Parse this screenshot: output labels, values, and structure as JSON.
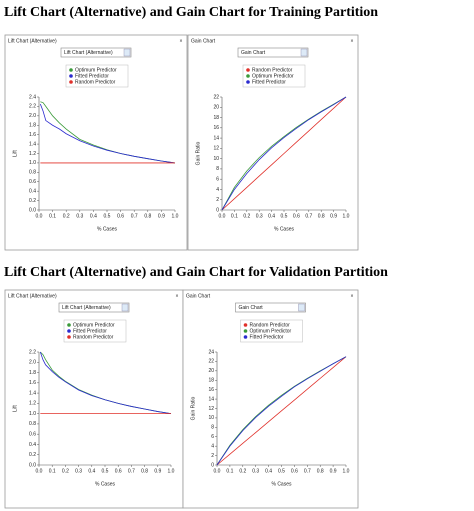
{
  "headings": [
    "Lift Chart (Alternative) and Gain Chart for Training Partition",
    "Lift Chart (Alternative) and Gain Chart for Validation Partition"
  ],
  "chart_data": [
    {
      "type": "line",
      "panel_title": "Lift Chart (Alternative)",
      "dropdown": "Lift Chart (Alternative)",
      "close": "×",
      "x_label": "% Cases",
      "y_label": "Lift",
      "x": [
        0.01,
        0.03,
        0.05,
        0.1,
        0.15,
        0.2,
        0.3,
        0.4,
        0.5,
        0.6,
        0.7,
        0.8,
        0.9,
        1.0
      ],
      "series": [
        {
          "name": "Optimum Predictor",
          "color": "#3a9a3a",
          "values": [
            2.3,
            2.28,
            2.2,
            2.0,
            1.85,
            1.72,
            1.5,
            1.38,
            1.28,
            1.2,
            1.14,
            1.09,
            1.04,
            1.0
          ]
        },
        {
          "name": "Fitted Predictor",
          "color": "#2b2bcf",
          "values": [
            2.25,
            2.1,
            1.9,
            1.8,
            1.72,
            1.62,
            1.47,
            1.36,
            1.27,
            1.2,
            1.14,
            1.09,
            1.04,
            1.0
          ]
        },
        {
          "name": "Random Predictor",
          "color": "#e0302a",
          "values": [
            1.0,
            1.0,
            1.0,
            1.0,
            1.0,
            1.0,
            1.0,
            1.0,
            1.0,
            1.0,
            1.0,
            1.0,
            1.0,
            1.0
          ]
        }
      ],
      "xlim": [
        0,
        1
      ],
      "ylim": [
        0,
        2.4
      ],
      "xticks": [
        {
          "value": 0,
          "label": "0.0"
        },
        {
          "value": 0.1,
          "label": "0.1"
        },
        {
          "value": 0.2,
          "label": "0.2"
        },
        {
          "value": 0.3,
          "label": "0.3"
        },
        {
          "value": 0.4,
          "label": "0.4"
        },
        {
          "value": 0.5,
          "label": "0.5"
        },
        {
          "value": 0.6,
          "label": "0.6"
        },
        {
          "value": 0.7,
          "label": "0.7"
        },
        {
          "value": 0.8,
          "label": "0.8"
        },
        {
          "value": 0.9,
          "label": "0.9"
        },
        {
          "value": 1,
          "label": "1.0"
        }
      ],
      "yticks": [
        {
          "value": 0,
          "label": "0.0"
        },
        {
          "value": 0.2,
          "label": "0.2"
        },
        {
          "value": 0.4,
          "label": "0.4"
        },
        {
          "value": 0.6,
          "label": "0.6"
        },
        {
          "value": 0.8,
          "label": "0.8"
        },
        {
          "value": 1,
          "label": "1.0"
        },
        {
          "value": 1.2,
          "label": "1.2"
        },
        {
          "value": 1.4,
          "label": "1.4"
        },
        {
          "value": 1.6,
          "label": "1.6"
        },
        {
          "value": 1.8,
          "label": "1.8"
        },
        {
          "value": 2,
          "label": "2.0"
        },
        {
          "value": 2.2,
          "label": "2.2"
        },
        {
          "value": 2.4,
          "label": "2.4"
        }
      ]
    },
    {
      "type": "line",
      "panel_title": "Gain Chart",
      "dropdown": "Gain Chart",
      "close": "×",
      "x_label": "% Cases",
      "y_label": "Gain Ratio",
      "x": [
        0,
        0.1,
        0.2,
        0.3,
        0.4,
        0.5,
        0.6,
        0.7,
        0.8,
        0.9,
        1.0
      ],
      "series": [
        {
          "name": "Random Predictor",
          "color": "#e0302a",
          "values": [
            0,
            2.2,
            4.4,
            6.6,
            8.8,
            11,
            13.2,
            15.4,
            17.6,
            19.8,
            22
          ]
        },
        {
          "name": "Optimum Predictor",
          "color": "#3a9a3a",
          "values": [
            0,
            4.4,
            7.6,
            10.2,
            12.4,
            14.3,
            16.1,
            17.7,
            19.2,
            20.6,
            22
          ]
        },
        {
          "name": "Fitted Predictor",
          "color": "#2b2bcf",
          "values": [
            0,
            4.0,
            7.1,
            9.8,
            12.1,
            14.1,
            15.9,
            17.6,
            19.1,
            20.5,
            22
          ]
        }
      ],
      "xlim": [
        0,
        1
      ],
      "ylim": [
        0,
        22
      ],
      "xticks": [
        {
          "value": 0,
          "label": "0.0"
        },
        {
          "value": 0.1,
          "label": "0.1"
        },
        {
          "value": 0.2,
          "label": "0.2"
        },
        {
          "value": 0.3,
          "label": "0.3"
        },
        {
          "value": 0.4,
          "label": "0.4"
        },
        {
          "value": 0.5,
          "label": "0.5"
        },
        {
          "value": 0.6,
          "label": "0.6"
        },
        {
          "value": 0.7,
          "label": "0.7"
        },
        {
          "value": 0.8,
          "label": "0.8"
        },
        {
          "value": 0.9,
          "label": "0.9"
        },
        {
          "value": 1,
          "label": "1.0"
        }
      ],
      "yticks": [
        0,
        2,
        4,
        6,
        8,
        10,
        12,
        14,
        16,
        18,
        20,
        22
      ]
    },
    {
      "type": "line",
      "panel_title": "Lift Chart (Alternative)",
      "dropdown": "Lift Chart (Alternative)",
      "close": "×",
      "x_label": "% Cases",
      "y_label": "Lift",
      "x": [
        0.01,
        0.03,
        0.05,
        0.1,
        0.15,
        0.2,
        0.3,
        0.4,
        0.5,
        0.6,
        0.7,
        0.8,
        0.9,
        1.0
      ],
      "series": [
        {
          "name": "Optimum Predictor",
          "color": "#3a9a3a",
          "values": [
            2.2,
            2.15,
            2.05,
            1.85,
            1.73,
            1.63,
            1.47,
            1.36,
            1.27,
            1.2,
            1.14,
            1.09,
            1.04,
            1.0
          ]
        },
        {
          "name": "Fitted Predictor",
          "color": "#2b2bcf",
          "values": [
            2.2,
            2.05,
            1.95,
            1.82,
            1.71,
            1.62,
            1.46,
            1.35,
            1.27,
            1.2,
            1.14,
            1.09,
            1.04,
            1.0
          ]
        },
        {
          "name": "Random Predictor",
          "color": "#e0302a",
          "values": [
            1.0,
            1.0,
            1.0,
            1.0,
            1.0,
            1.0,
            1.0,
            1.0,
            1.0,
            1.0,
            1.0,
            1.0,
            1.0,
            1.0
          ]
        }
      ],
      "xlim": [
        0,
        1
      ],
      "ylim": [
        0,
        2.2
      ],
      "xticks": [
        {
          "value": 0,
          "label": "0.0"
        },
        {
          "value": 0.1,
          "label": "0.1"
        },
        {
          "value": 0.2,
          "label": "0.2"
        },
        {
          "value": 0.3,
          "label": "0.3"
        },
        {
          "value": 0.4,
          "label": "0.4"
        },
        {
          "value": 0.5,
          "label": "0.5"
        },
        {
          "value": 0.6,
          "label": "0.6"
        },
        {
          "value": 0.7,
          "label": "0.7"
        },
        {
          "value": 0.8,
          "label": "0.8"
        },
        {
          "value": 0.9,
          "label": "0.9"
        },
        {
          "value": 1,
          "label": "1.0"
        }
      ],
      "yticks": [
        {
          "value": 0,
          "label": "0.0"
        },
        {
          "value": 0.2,
          "label": "0.2"
        },
        {
          "value": 0.4,
          "label": "0.4"
        },
        {
          "value": 0.6,
          "label": "0.6"
        },
        {
          "value": 0.8,
          "label": "0.8"
        },
        {
          "value": 1,
          "label": "1.0"
        },
        {
          "value": 1.2,
          "label": "1.2"
        },
        {
          "value": 1.4,
          "label": "1.4"
        },
        {
          "value": 1.6,
          "label": "1.6"
        },
        {
          "value": 1.8,
          "label": "1.8"
        },
        {
          "value": 2,
          "label": "2.0"
        },
        {
          "value": 2.2,
          "label": "2.2"
        }
      ]
    },
    {
      "type": "line",
      "panel_title": "Gain Chart",
      "dropdown": "Gain Chart",
      "close": "×",
      "x_label": "% Cases",
      "y_label": "Gain Ratio",
      "x": [
        0,
        0.1,
        0.2,
        0.3,
        0.4,
        0.5,
        0.6,
        0.7,
        0.8,
        0.9,
        1.0
      ],
      "series": [
        {
          "name": "Random Predictor",
          "color": "#e0302a",
          "values": [
            0,
            2.3,
            4.6,
            6.9,
            9.2,
            11.5,
            13.8,
            16.1,
            18.4,
            20.7,
            23
          ]
        },
        {
          "name": "Optimum Predictor",
          "color": "#3a9a3a",
          "values": [
            0,
            4.2,
            7.5,
            10.3,
            12.7,
            14.8,
            16.7,
            18.4,
            20.0,
            21.5,
            23
          ]
        },
        {
          "name": "Fitted Predictor",
          "color": "#2b2bcf",
          "values": [
            0,
            4.0,
            7.3,
            10.1,
            12.5,
            14.6,
            16.6,
            18.3,
            19.9,
            21.5,
            23
          ]
        }
      ],
      "xlim": [
        0,
        1
      ],
      "ylim": [
        0,
        24
      ],
      "xticks": [
        {
          "value": 0,
          "label": "0.0"
        },
        {
          "value": 0.1,
          "label": "0.1"
        },
        {
          "value": 0.2,
          "label": "0.2"
        },
        {
          "value": 0.3,
          "label": "0.3"
        },
        {
          "value": 0.4,
          "label": "0.4"
        },
        {
          "value": 0.5,
          "label": "0.5"
        },
        {
          "value": 0.6,
          "label": "0.6"
        },
        {
          "value": 0.7,
          "label": "0.7"
        },
        {
          "value": 0.8,
          "label": "0.8"
        },
        {
          "value": 0.9,
          "label": "0.9"
        },
        {
          "value": 1,
          "label": "1.0"
        }
      ],
      "yticks": [
        0,
        2,
        4,
        6,
        8,
        10,
        12,
        14,
        16,
        18,
        20,
        22,
        24
      ]
    }
  ]
}
